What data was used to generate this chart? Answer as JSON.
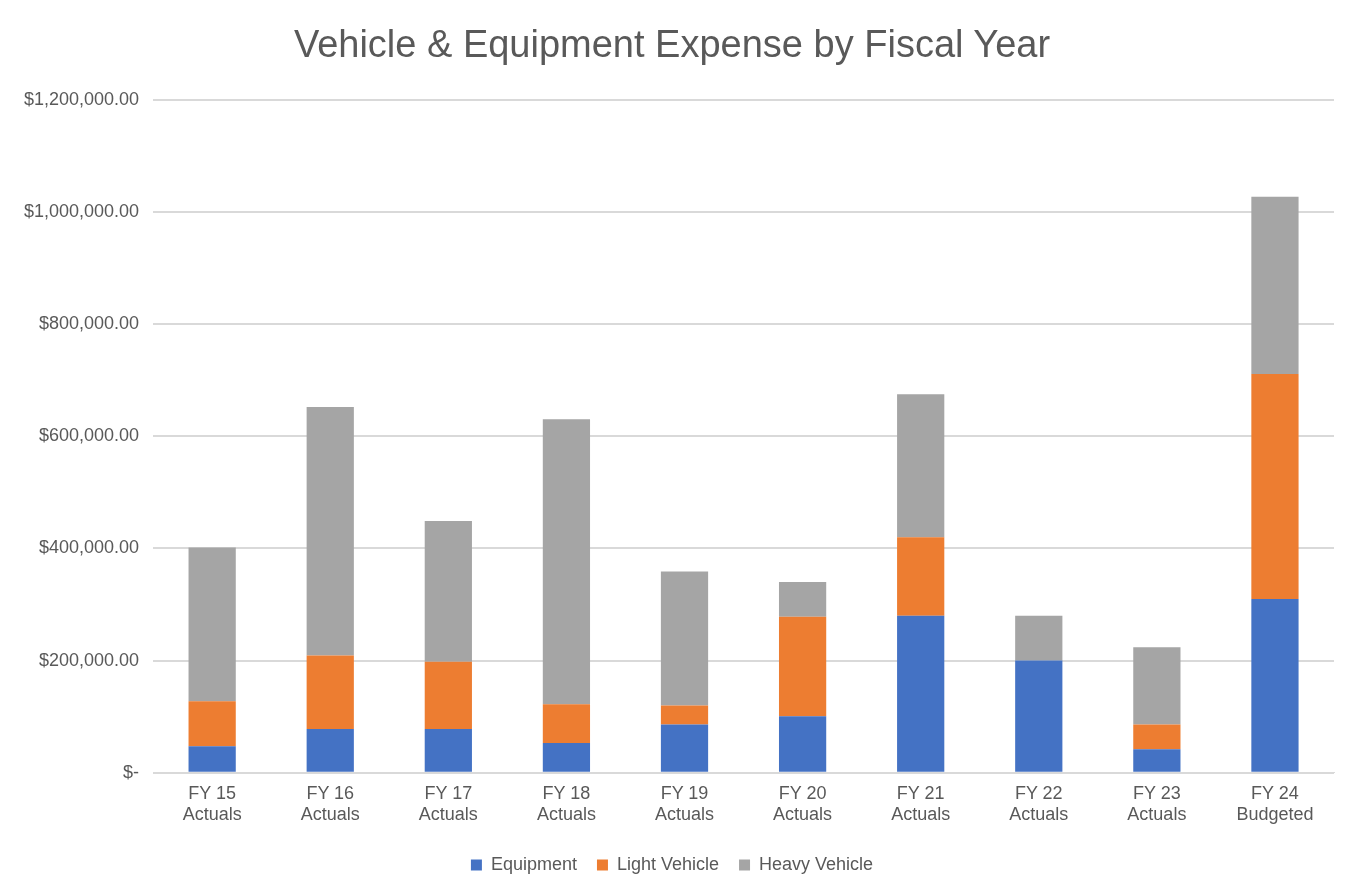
{
  "chart_data": {
    "type": "bar",
    "title": "Vehicle & Equipment Expense by Fiscal Year",
    "categories": [
      "FY 15\nActuals",
      "FY 16\nActuals",
      "FY 17\nActuals",
      "FY 18\nActuals",
      "FY 19\nActuals",
      "FY 20\nActuals",
      "FY 21\nActuals",
      "FY 22\nActuals",
      "FY 23\nActuals",
      "FY 24\nBudgeted"
    ],
    "series": [
      {
        "name": "Equipment",
        "color": "#4472c4",
        "values": [
          47500,
          78000,
          78000,
          53000,
          86000,
          101000,
          280000,
          200000,
          42000,
          310000
        ]
      },
      {
        "name": "Light Vehicle",
        "color": "#ed7d31",
        "values": [
          80000,
          131000,
          120000,
          69000,
          34000,
          177000,
          140000,
          0,
          44000,
          401000
        ]
      },
      {
        "name": "Heavy Vehicle",
        "color": "#a5a5a5",
        "values": [
          274000,
          443000,
          251000,
          508000,
          239000,
          62000,
          255000,
          80000,
          138000,
          316000
        ]
      }
    ],
    "stacked": true,
    "ylim": [
      0,
      1200000
    ],
    "yticks": [
      {
        "value": 0,
        "label": "$-"
      },
      {
        "value": 200000,
        "label": "$200,000.00"
      },
      {
        "value": 400000,
        "label": "$400,000.00"
      },
      {
        "value": 600000,
        "label": "$600,000.00"
      },
      {
        "value": 800000,
        "label": "$800,000.00"
      },
      {
        "value": 1000000,
        "label": "$1,000,000.00"
      },
      {
        "value": 1200000,
        "label": "$1,200,000.00"
      }
    ],
    "grid": "y",
    "legend": "bottom"
  }
}
